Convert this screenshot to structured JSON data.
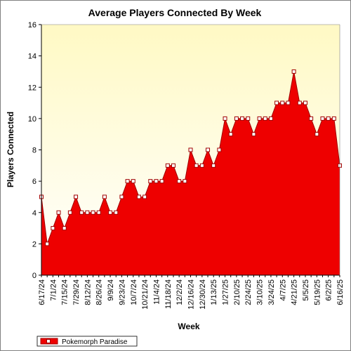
{
  "chart_data": {
    "type": "area",
    "title": "Average Players Connected By Week",
    "xlabel": "Week",
    "ylabel": "Players Connected",
    "ylim": [
      0,
      16
    ],
    "yticks": [
      0,
      2,
      4,
      6,
      8,
      10,
      12,
      14,
      16
    ],
    "grid": false,
    "legend_placement": "bottom-left",
    "colors": {
      "plot_background_top": "#fff9c4",
      "plot_background_bottom": "#ffffff",
      "area_fill": "#ee0000",
      "line": "#a00000",
      "marker_fill": "#ffffff"
    },
    "x": [
      "6/17/24",
      "6/24/24",
      "7/1/24",
      "7/8/24",
      "7/15/24",
      "7/22/24",
      "7/29/24",
      "8/5/24",
      "8/12/24",
      "8/19/24",
      "8/26/24",
      "9/2/24",
      "9/9/24",
      "9/16/24",
      "9/23/24",
      "9/30/24",
      "10/7/24",
      "10/14/24",
      "10/21/24",
      "10/28/24",
      "11/4/24",
      "11/11/24",
      "11/18/24",
      "11/25/24",
      "12/2/24",
      "12/9/24",
      "12/16/24",
      "12/23/24",
      "12/30/24",
      "1/6/25",
      "1/13/25",
      "1/20/25",
      "1/27/25",
      "2/3/25",
      "2/10/25",
      "2/17/25",
      "2/24/25",
      "3/3/25",
      "3/10/25",
      "3/17/25",
      "3/24/25",
      "3/31/25",
      "4/7/25",
      "4/14/25",
      "4/21/25",
      "4/28/25",
      "5/5/25",
      "5/12/25",
      "5/19/25",
      "5/26/25",
      "6/2/25",
      "6/9/25",
      "6/16/25"
    ],
    "xtick_labels": [
      "6/17/24",
      "7/1/24",
      "7/15/24",
      "7/29/24",
      "8/12/24",
      "8/26/24",
      "9/9/24",
      "9/23/24",
      "10/7/24",
      "10/21/24",
      "11/4/24",
      "11/18/24",
      "12/2/24",
      "12/16/24",
      "12/30/24",
      "1/13/25",
      "1/27/25",
      "2/10/25",
      "2/24/25",
      "3/10/25",
      "3/24/25",
      "4/7/25",
      "4/21/25",
      "5/5/25",
      "5/19/25",
      "6/2/25",
      "6/16/25"
    ],
    "series": [
      {
        "name": "Pokemorph Paradise",
        "values": [
          5,
          2,
          3,
          4,
          3,
          4,
          5,
          4,
          4,
          4,
          4,
          5,
          4,
          4,
          5,
          6,
          6,
          5,
          5,
          6,
          6,
          6,
          7,
          7,
          6,
          6,
          8,
          7,
          7,
          8,
          7,
          8,
          10,
          9,
          10,
          10,
          10,
          9,
          10,
          10,
          10,
          11,
          11,
          11,
          13,
          11,
          11,
          10,
          9,
          10,
          10,
          10,
          7
        ]
      }
    ]
  }
}
